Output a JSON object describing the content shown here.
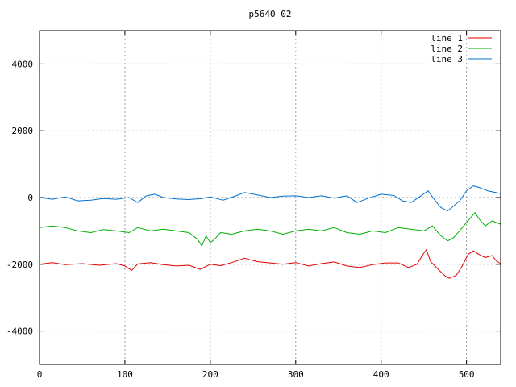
{
  "chart_data": {
    "type": "line",
    "title": "p5640_02",
    "xlabel": "",
    "ylabel": "",
    "xlim": [
      0,
      540
    ],
    "ylim": [
      -5000,
      5000
    ],
    "xticks": [
      0,
      100,
      200,
      300,
      400,
      500
    ],
    "yticks": [
      -4000,
      -2000,
      0,
      2000,
      4000
    ],
    "grid": true,
    "legend_position": "top-right",
    "series": [
      {
        "name": "line 1",
        "color": "#e00000",
        "x": [
          0,
          15,
          30,
          50,
          70,
          90,
          100,
          108,
          115,
          130,
          145,
          160,
          175,
          188,
          200,
          212,
          225,
          240,
          255,
          270,
          285,
          300,
          315,
          330,
          345,
          360,
          375,
          390,
          405,
          420,
          432,
          442,
          448,
          453,
          458,
          468,
          475,
          480,
          488,
          495,
          502,
          508,
          515,
          522,
          530,
          535,
          540
        ],
        "y": [
          -2000,
          -1950,
          -2010,
          -1980,
          -2030,
          -1980,
          -2050,
          -2180,
          -1990,
          -1950,
          -2010,
          -2050,
          -2030,
          -2150,
          -2000,
          -2040,
          -1950,
          -1820,
          -1920,
          -1960,
          -2000,
          -1950,
          -2050,
          -1980,
          -1930,
          -2050,
          -2100,
          -2010,
          -1960,
          -1960,
          -2100,
          -2000,
          -1750,
          -1560,
          -1920,
          -2180,
          -2350,
          -2420,
          -2330,
          -2050,
          -1700,
          -1600,
          -1710,
          -1800,
          -1740,
          -1900,
          -1980
        ]
      },
      {
        "name": "line 2",
        "color": "#00b000",
        "x": [
          0,
          15,
          30,
          45,
          60,
          75,
          90,
          105,
          115,
          130,
          145,
          160,
          175,
          185,
          190,
          195,
          200,
          205,
          212,
          225,
          240,
          255,
          270,
          285,
          300,
          315,
          330,
          345,
          360,
          375,
          390,
          405,
          420,
          435,
          450,
          460,
          470,
          478,
          485,
          495,
          505,
          510,
          515,
          522,
          530,
          540
        ],
        "y": [
          -900,
          -850,
          -900,
          -1000,
          -1050,
          -960,
          -1000,
          -1050,
          -900,
          -1000,
          -950,
          -1000,
          -1050,
          -1250,
          -1450,
          -1150,
          -1350,
          -1250,
          -1050,
          -1100,
          -1000,
          -950,
          -1000,
          -1100,
          -1000,
          -950,
          -1000,
          -900,
          -1050,
          -1100,
          -1000,
          -1050,
          -900,
          -950,
          -1000,
          -850,
          -1150,
          -1300,
          -1200,
          -900,
          -600,
          -450,
          -650,
          -850,
          -700,
          -800
        ]
      },
      {
        "name": "line 3",
        "color": "#0070d0",
        "x": [
          0,
          15,
          30,
          45,
          60,
          75,
          90,
          105,
          115,
          125,
          135,
          145,
          160,
          175,
          190,
          200,
          215,
          230,
          240,
          255,
          270,
          285,
          300,
          315,
          330,
          345,
          360,
          372,
          385,
          400,
          415,
          425,
          435,
          445,
          455,
          462,
          470,
          478,
          485,
          492,
          500,
          508,
          515,
          525,
          540
        ],
        "y": [
          0,
          -50,
          20,
          -100,
          -80,
          -30,
          -50,
          0,
          -150,
          50,
          100,
          0,
          -40,
          -60,
          -30,
          20,
          -80,
          50,
          150,
          80,
          0,
          40,
          50,
          0,
          50,
          -20,
          50,
          -150,
          -20,
          100,
          60,
          -100,
          -150,
          20,
          200,
          -50,
          -300,
          -400,
          -250,
          -100,
          200,
          350,
          300,
          200,
          120
        ]
      }
    ]
  }
}
